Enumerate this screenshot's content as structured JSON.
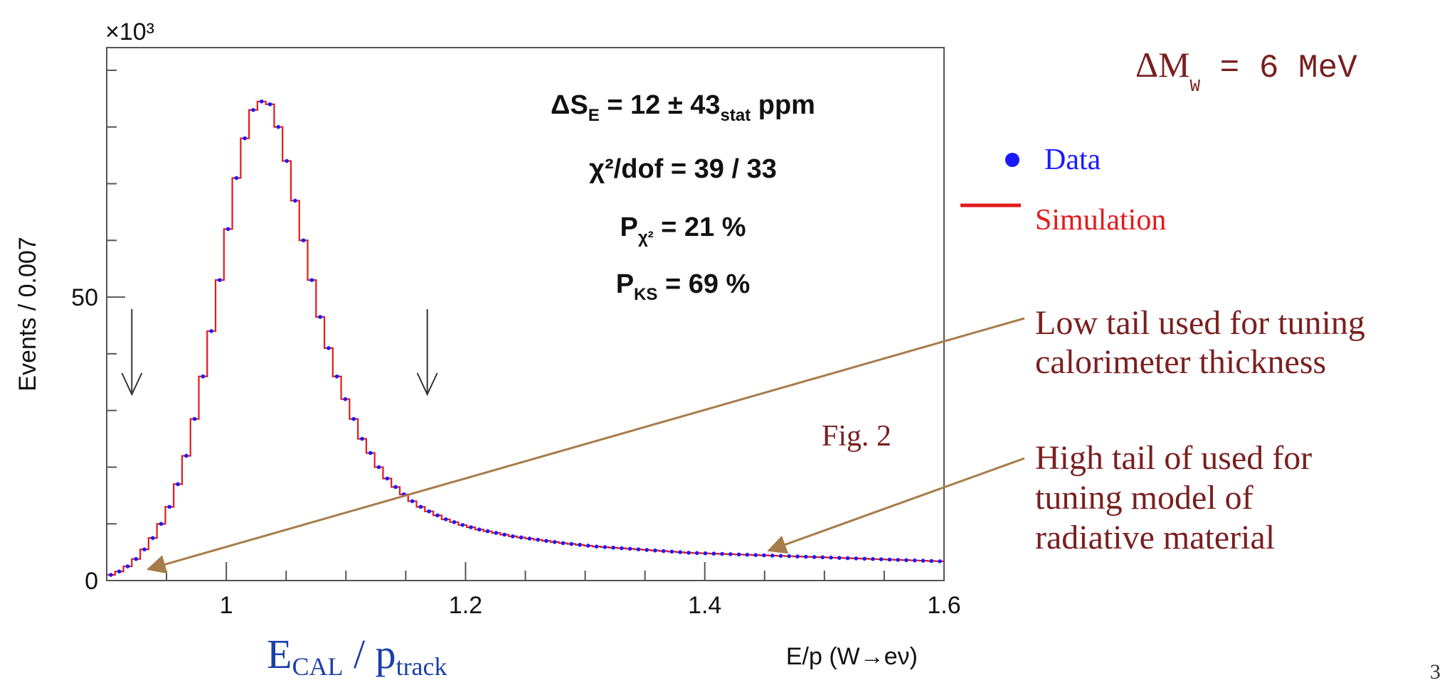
{
  "chart_data": {
    "type": "line",
    "title": "",
    "xlabel": "E/p (W→eν)",
    "ylabel": "Events / 0.007",
    "y_multiplier": "×10³",
    "xlim": [
      0.9,
      1.6
    ],
    "ylim": [
      0,
      94
    ],
    "x_ticks": [
      "1",
      "1.2",
      "1.4",
      "1.6"
    ],
    "y_ticks": [
      "0",
      "50"
    ],
    "x_tick_values": [
      1.0,
      1.2,
      1.4,
      1.6
    ],
    "y_tick_values": [
      0,
      50
    ],
    "bin_width": 0.007,
    "series": [
      {
        "name": "Data",
        "color": "#1a1aff",
        "x": [
          0.9035,
          0.9105,
          0.9175,
          0.9245,
          0.9315,
          0.9385,
          0.9455,
          0.9525,
          0.9595,
          0.9665,
          0.9735,
          0.9805,
          0.9875,
          0.9945,
          1.0015,
          1.0085,
          1.0155,
          1.0225,
          1.0295,
          1.0365,
          1.0435,
          1.0505,
          1.0575,
          1.0645,
          1.0715,
          1.0785,
          1.0855,
          1.0925,
          1.0995,
          1.1065,
          1.1135,
          1.1205,
          1.1275,
          1.1345,
          1.1415,
          1.1485,
          1.1555,
          1.1625,
          1.1695,
          1.1765,
          1.1835,
          1.1905,
          1.1975,
          1.2045,
          1.2115,
          1.2185,
          1.2255,
          1.2325,
          1.2395,
          1.2465,
          1.2535,
          1.2605,
          1.2675,
          1.2745,
          1.2815,
          1.2885,
          1.2955,
          1.3025,
          1.3095,
          1.3165,
          1.3235,
          1.3305,
          1.3375,
          1.3445,
          1.3515,
          1.3585,
          1.3655,
          1.3725,
          1.3795,
          1.3865,
          1.3935,
          1.4005,
          1.4075,
          1.4145,
          1.4215,
          1.4285,
          1.4355,
          1.4425,
          1.4495,
          1.4565,
          1.4635,
          1.4705,
          1.4775,
          1.4845,
          1.4915,
          1.4985,
          1.5055,
          1.5125,
          1.5195,
          1.5265,
          1.5335,
          1.5405,
          1.5475,
          1.5545,
          1.5615,
          1.5685,
          1.5755,
          1.5825,
          1.5895,
          1.5965
        ],
        "y": [
          1.0,
          1.6,
          2.5,
          3.8,
          5.5,
          7.5,
          10.0,
          13.0,
          17.0,
          22.0,
          28.5,
          36.0,
          44.0,
          53.0,
          62.0,
          71.0,
          78.0,
          83.0,
          84.5,
          84.0,
          80.0,
          74.0,
          67.0,
          60.0,
          53.0,
          46.5,
          41.0,
          36.0,
          32.0,
          28.5,
          25.0,
          22.5,
          20.0,
          18.0,
          16.5,
          15.2,
          14.0,
          13.0,
          12.2,
          11.5,
          10.8,
          10.3,
          9.8,
          9.4,
          9.0,
          8.7,
          8.4,
          8.1,
          7.8,
          7.6,
          7.4,
          7.2,
          7.0,
          6.8,
          6.6,
          6.45,
          6.3,
          6.15,
          6.0,
          5.9,
          5.8,
          5.7,
          5.6,
          5.5,
          5.4,
          5.3,
          5.2,
          5.1,
          5.0,
          4.9,
          4.85,
          4.8,
          4.75,
          4.7,
          4.65,
          4.6,
          4.55,
          4.5,
          4.45,
          4.4,
          4.35,
          4.3,
          4.25,
          4.2,
          4.15,
          4.1,
          4.05,
          4.0,
          3.95,
          3.9,
          3.85,
          3.8,
          3.75,
          3.7,
          3.65,
          3.6,
          3.55,
          3.5,
          3.45,
          3.4
        ]
      },
      {
        "name": "Simulation",
        "color": "#e31a1c",
        "style": "step",
        "x": [
          0.9035,
          0.9105,
          0.9175,
          0.9245,
          0.9315,
          0.9385,
          0.9455,
          0.9525,
          0.9595,
          0.9665,
          0.9735,
          0.9805,
          0.9875,
          0.9945,
          1.0015,
          1.0085,
          1.0155,
          1.0225,
          1.0295,
          1.0365,
          1.0435,
          1.0505,
          1.0575,
          1.0645,
          1.0715,
          1.0785,
          1.0855,
          1.0925,
          1.0995,
          1.1065,
          1.1135,
          1.1205,
          1.1275,
          1.1345,
          1.1415,
          1.1485,
          1.1555,
          1.1625,
          1.1695,
          1.1765,
          1.1835,
          1.1905,
          1.1975,
          1.2045,
          1.2115,
          1.2185,
          1.2255,
          1.2325,
          1.2395,
          1.2465,
          1.2535,
          1.2605,
          1.2675,
          1.2745,
          1.2815,
          1.2885,
          1.2955,
          1.3025,
          1.3095,
          1.3165,
          1.3235,
          1.3305,
          1.3375,
          1.3445,
          1.3515,
          1.3585,
          1.3655,
          1.3725,
          1.3795,
          1.3865,
          1.3935,
          1.4005,
          1.4075,
          1.4145,
          1.4215,
          1.4285,
          1.4355,
          1.4425,
          1.4495,
          1.4565,
          1.4635,
          1.4705,
          1.4775,
          1.4845,
          1.4915,
          1.4985,
          1.5055,
          1.5125,
          1.5195,
          1.5265,
          1.5335,
          1.5405,
          1.5475,
          1.5545,
          1.5615,
          1.5685,
          1.5755,
          1.5825,
          1.5895,
          1.5965
        ],
        "y": [
          1.0,
          1.6,
          2.5,
          3.8,
          5.5,
          7.5,
          10.0,
          13.0,
          17.0,
          22.0,
          28.5,
          36.0,
          44.0,
          53.0,
          62.0,
          71.0,
          78.0,
          83.0,
          84.5,
          84.0,
          80.0,
          74.0,
          67.0,
          60.0,
          53.0,
          46.5,
          41.0,
          36.0,
          32.0,
          28.5,
          25.0,
          22.5,
          20.0,
          18.0,
          16.5,
          15.2,
          14.0,
          13.0,
          12.2,
          11.5,
          10.8,
          10.3,
          9.8,
          9.4,
          9.0,
          8.7,
          8.4,
          8.1,
          7.8,
          7.6,
          7.4,
          7.2,
          7.0,
          6.8,
          6.6,
          6.45,
          6.3,
          6.15,
          6.0,
          5.9,
          5.8,
          5.7,
          5.6,
          5.5,
          5.4,
          5.3,
          5.2,
          5.1,
          5.0,
          4.9,
          4.85,
          4.8,
          4.75,
          4.7,
          4.65,
          4.6,
          4.55,
          4.5,
          4.45,
          4.4,
          4.35,
          4.3,
          4.25,
          4.2,
          4.15,
          4.1,
          4.05,
          4.0,
          3.95,
          3.9,
          3.85,
          3.8,
          3.75,
          3.7,
          3.65,
          3.6,
          3.55,
          3.5,
          3.45,
          3.4
        ]
      }
    ],
    "fit_stats": [
      {
        "base": "ΔS",
        "sub": "E",
        "mid": " = 12  ± 43",
        "sub2": "stat",
        "tail": " ppm"
      },
      {
        "base": "χ²/dof = 39 / 33"
      },
      {
        "base": "P",
        "sub": "χ²",
        "tail": " = 21 %"
      },
      {
        "base": "P",
        "sub": "KS",
        "tail": " = 69 %"
      }
    ],
    "cut_arrows_x": [
      0.921,
      1.168
    ],
    "legend": [
      {
        "label": "Data",
        "marker": "dot",
        "color": "#1a1aff"
      },
      {
        "label": "Simulation",
        "marker": "line",
        "color": "#e31a1c"
      }
    ],
    "legend_position": "right-outside",
    "grid": false
  },
  "annotations": {
    "delta_mw": {
      "base": "ΔM",
      "sub": "W",
      "tail": " = 6 MeV"
    },
    "fig_label": "Fig. 2",
    "ecal_label": {
      "base": "E",
      "sub1": "CAL",
      "mid": " / p",
      "sub2": "track"
    },
    "low_tail": {
      "lines": [
        "Low tail used for tuning",
        "calorimeter thickness"
      ],
      "target_x": 0.93,
      "target_y": 1.5
    },
    "high_tail": {
      "lines": [
        "High tail of used for",
        "tuning model of",
        "radiative material"
      ],
      "target_x": 1.45,
      "target_y": 4.8
    },
    "slide_number": "3",
    "annotation_color": "#7a1f1f",
    "arrow_color": "#a67c4a"
  }
}
